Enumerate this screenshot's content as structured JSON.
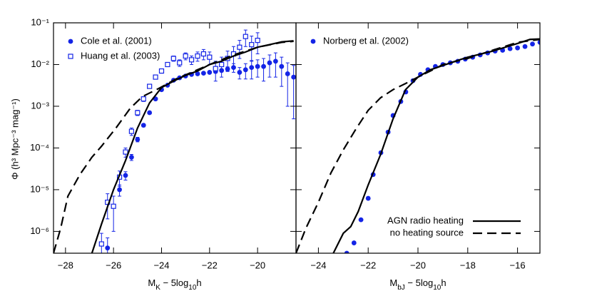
{
  "chart_data": [
    {
      "type": "line",
      "y_label": "Φ (h³ Mpc⁻³ mag⁻¹)",
      "x_label": [
        "M",
        "K",
        " − 5log",
        "10",
        "h"
      ],
      "xlim": [
        -28.5,
        -18.4
      ],
      "xticks": [
        {
          "value": -28,
          "label": "−28"
        },
        {
          "value": -26,
          "label": "−26"
        },
        {
          "value": -24,
          "label": "−24"
        },
        {
          "value": -22,
          "label": "−22"
        },
        {
          "value": -20,
          "label": "−20"
        }
      ],
      "ylim": [
        3e-07,
        0.1
      ],
      "log_y": true,
      "show_ytick_labels": true,
      "yticks": [
        {
          "value": 0.1,
          "label": "10⁻¹"
        },
        {
          "value": 0.01,
          "label": "10⁻²"
        },
        {
          "value": 0.001,
          "label": "10⁻³"
        },
        {
          "value": 0.0001,
          "label": "10⁻⁴"
        },
        {
          "value": 1e-05,
          "label": "10⁻⁵"
        },
        {
          "value": 1e-06,
          "label": "10⁻⁶"
        }
      ],
      "marker_legend": "upper left",
      "series": [
        {
          "name": "Cole et al. (2001)",
          "color": "#1424e6",
          "marker": "circle",
          "x": [
            -26.25,
            -25.75,
            -25.5,
            -25.25,
            -25.0,
            -24.75,
            -24.5,
            -24.25,
            -24.0,
            -23.75,
            -23.5,
            -23.25,
            -23.0,
            -22.75,
            -22.5,
            -22.25,
            -22.0,
            -21.75,
            -21.5,
            -21.25,
            -21.0,
            -20.75,
            -20.5,
            -20.25,
            -20.0,
            -19.75,
            -19.5,
            -19.25,
            -19.0,
            -18.75,
            -18.5
          ],
          "values": [
            4e-07,
            1e-05,
            2.2e-05,
            6e-05,
            0.00016,
            0.00035,
            0.0007,
            0.0015,
            0.0025,
            0.0032,
            0.0042,
            0.0048,
            0.0053,
            0.0058,
            0.006,
            0.0062,
            0.0065,
            0.0068,
            0.0072,
            0.0078,
            0.0085,
            0.0065,
            0.0075,
            0.0085,
            0.009,
            0.009,
            0.011,
            0.012,
            0.009,
            0.006,
            0.005
          ],
          "errors": [
            3e-07,
            3e-06,
            5e-06,
            1e-05,
            2e-05,
            3e-05,
            5e-05,
            0.0001,
            0.00015,
            0.0002,
            0.0002,
            0.0002,
            0.0002,
            0.0002,
            0.0003,
            0.0003,
            0.0004,
            0.0005,
            0.0006,
            0.001,
            0.002,
            0.002,
            0.003,
            0.004,
            0.004,
            0.005,
            0.006,
            0.007,
            0.006,
            0.005,
            0.0045
          ]
        },
        {
          "name": "Huang et al. (2003)",
          "color": "#1424e6",
          "marker": "square",
          "x": [
            -26.5,
            -26.25,
            -26.0,
            -25.75,
            -25.5,
            -25.25,
            -25.0,
            -24.75,
            -24.5,
            -24.25,
            -24.0,
            -23.75,
            -23.5,
            -23.25,
            -23.0,
            -22.75,
            -22.5,
            -22.25,
            -22.0,
            -21.75,
            -21.5,
            -21.25,
            -21.0,
            -20.75,
            -20.5,
            -20.25,
            -20.0
          ],
          "values": [
            5e-07,
            5e-06,
            4e-06,
            2e-05,
            8e-05,
            0.00025,
            0.0007,
            0.0015,
            0.003,
            0.005,
            0.007,
            0.01,
            0.014,
            0.011,
            0.016,
            0.013,
            0.016,
            0.018,
            0.015,
            0.008,
            0.01,
            0.014,
            0.018,
            0.026,
            0.047,
            0.03,
            0.038
          ],
          "errors": [
            4e-07,
            3e-06,
            3e-06,
            8e-06,
            2e-05,
            5e-05,
            0.0001,
            0.0002,
            0.0003,
            0.0005,
            0.0008,
            0.001,
            0.002,
            0.002,
            0.003,
            0.003,
            0.004,
            0.005,
            0.005,
            0.004,
            0.005,
            0.007,
            0.009,
            0.012,
            0.02,
            0.018,
            0.02
          ]
        },
        {
          "color": "#000000",
          "line": "solid",
          "x": [
            -26.9,
            -26.5,
            -26.0,
            -25.5,
            -25.0,
            -24.5,
            -24.0,
            -23.5,
            -23.0,
            -22.5,
            -22.0,
            -21.5,
            -21.0,
            -20.5,
            -20.0,
            -19.5,
            -19.0,
            -18.5
          ],
          "values": [
            3e-07,
            1.5e-06,
            1e-05,
            5e-05,
            0.0003,
            0.0012,
            0.0028,
            0.004,
            0.0055,
            0.007,
            0.01,
            0.012,
            0.016,
            0.02,
            0.026,
            0.03,
            0.035,
            0.037
          ]
        },
        {
          "color": "#000000",
          "line": "dashed",
          "x": [
            -28.5,
            -28.2,
            -27.9,
            -27.4,
            -26.9,
            -26.5,
            -25.9,
            -25.3,
            -24.8,
            -24.1,
            -23.4,
            -22.5,
            -22.0,
            -21.0,
            -20.0,
            -19.0,
            -18.5
          ],
          "values": [
            3e-07,
            1.2e-06,
            7e-06,
            2.3e-05,
            6e-05,
            0.00011,
            0.0003,
            0.0009,
            0.0017,
            0.0027,
            0.0045,
            0.0075,
            0.01,
            0.017,
            0.026,
            0.034,
            0.036
          ]
        }
      ]
    },
    {
      "type": "line",
      "x_label": [
        "M",
        "bJ",
        " − 5log",
        "10",
        "h"
      ],
      "xlim": [
        -24.9,
        -15.1
      ],
      "xticks": [
        {
          "value": -24,
          "label": "−24"
        },
        {
          "value": -22,
          "label": "−22"
        },
        {
          "value": -20,
          "label": "−20"
        },
        {
          "value": -18,
          "label": "−18"
        },
        {
          "value": -16,
          "label": "−16"
        }
      ],
      "ylim": [
        3e-07,
        0.1
      ],
      "log_y": true,
      "show_ytick_labels": false,
      "yticks": [
        0.1,
        0.01,
        0.001,
        0.0001,
        1e-05,
        1e-06
      ],
      "marker_legend": "upper left",
      "line_legend": "lower right",
      "series": [
        {
          "name": "Norberg et al. (2002)",
          "color": "#1424e6",
          "marker": "circle",
          "x": [
            -22.86,
            -22.57,
            -22.29,
            -22.0,
            -21.8,
            -21.49,
            -21.2,
            -21.0,
            -20.69,
            -20.49,
            -20.2,
            -19.9,
            -19.6,
            -19.3,
            -19.0,
            -18.7,
            -18.4,
            -18.1,
            -17.8,
            -17.5,
            -17.2,
            -16.9,
            -16.6,
            -16.3,
            -16.0,
            -15.7,
            -15.4,
            -15.1
          ],
          "values": [
            3e-07,
            5.3e-07,
            1.9e-06,
            6.2e-06,
            2.3e-05,
            7.7e-05,
            0.00024,
            0.0006,
            0.0013,
            0.0022,
            0.0041,
            0.0058,
            0.0075,
            0.009,
            0.01,
            0.011,
            0.012,
            0.0135,
            0.015,
            0.017,
            0.019,
            0.021,
            0.022,
            0.024,
            0.025,
            0.027,
            0.031,
            0.034
          ]
        },
        {
          "name": "AGN radio heating",
          "color": "#000000",
          "line": "solid",
          "x": [
            -23.4,
            -23.0,
            -22.7,
            -22.4,
            -22.0,
            -21.5,
            -21.0,
            -20.5,
            -20.0,
            -19.5,
            -19.0,
            -18.5,
            -18.0,
            -17.0,
            -16.0,
            -15.5,
            -15.1
          ],
          "values": [
            3e-07,
            9e-07,
            1.3e-06,
            3e-06,
            1.3e-05,
            7e-05,
            0.0005,
            0.0025,
            0.005,
            0.0075,
            0.0095,
            0.012,
            0.015,
            0.021,
            0.032,
            0.04,
            0.041
          ]
        },
        {
          "name": "no heating source",
          "color": "#000000",
          "line": "dashed",
          "x": [
            -24.9,
            -24.5,
            -24.0,
            -23.5,
            -23.0,
            -22.5,
            -22.0,
            -21.5,
            -21.0,
            -20.5,
            -20.0,
            -19.5,
            -19.0,
            -18.0,
            -17.0,
            -16.0,
            -15.1
          ],
          "values": [
            3e-07,
            1.2e-06,
            5e-06,
            2.5e-05,
            9e-05,
            0.00028,
            0.0008,
            0.0016,
            0.0025,
            0.0035,
            0.005,
            0.007,
            0.01,
            0.014,
            0.022,
            0.034,
            0.04
          ]
        }
      ]
    }
  ]
}
